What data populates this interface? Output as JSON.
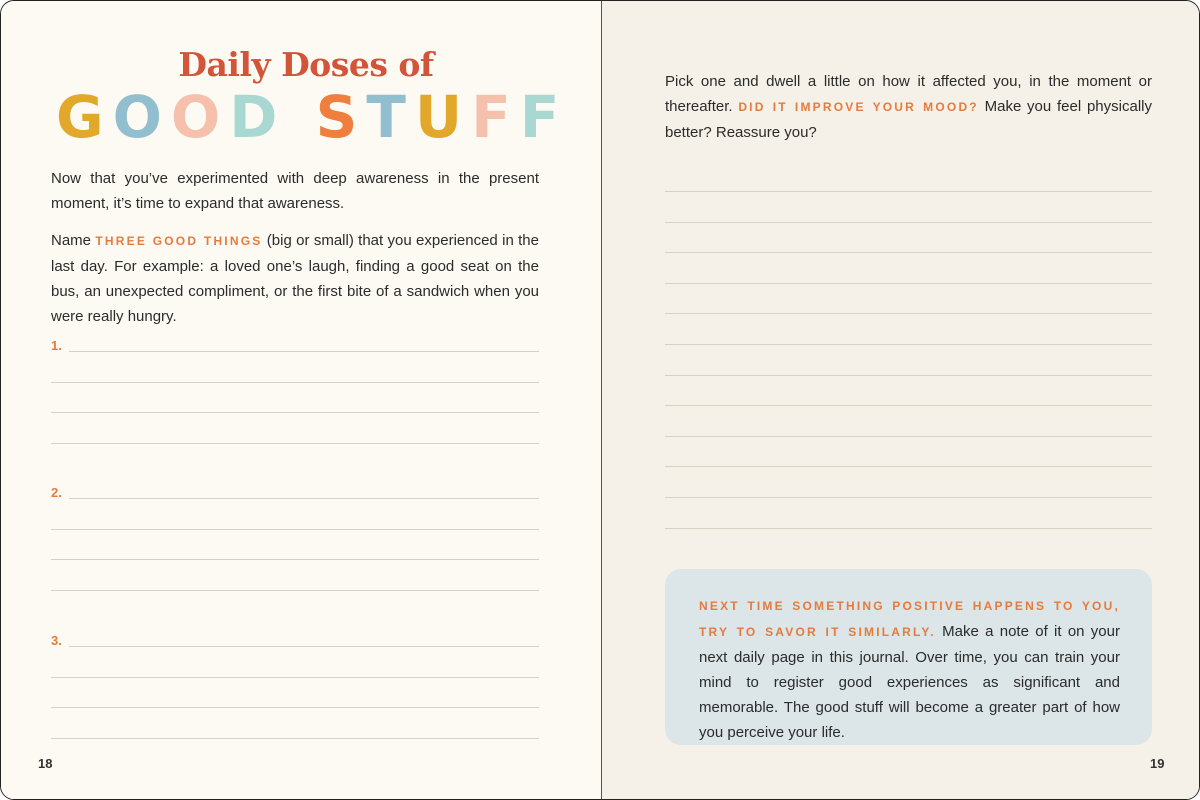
{
  "left_page": {
    "title_top": "Daily Doses of",
    "title_letters": [
      {
        "ch": "G",
        "color": "#e2a82b"
      },
      {
        "ch": "O",
        "color": "#92bfcf"
      },
      {
        "ch": "O",
        "color": "#f5c1ac"
      },
      {
        "ch": "D",
        "color": "#a9d7d2"
      },
      {
        "ch": " ",
        "color": "#ffffff"
      },
      {
        "ch": "S",
        "color": "#ee7f3d"
      },
      {
        "ch": "T",
        "color": "#92bfcf"
      },
      {
        "ch": "U",
        "color": "#e2a82b"
      },
      {
        "ch": "F",
        "color": "#f5c1ac"
      },
      {
        "ch": "F",
        "color": "#a9d7d2"
      }
    ],
    "intro": "Now that you’ve experimented with deep awareness in the present moment, it’s time to expand that awareness.",
    "prompt_before": "Name ",
    "prompt_highlight": "THREE GOOD THINGS",
    "prompt_after": " (big or small) that you experienced in the last day. For example: a loved one’s laugh, finding a good seat on the bus, an unexpected compliment, or the first bite of a sandwich when you were really hungry.",
    "items": [
      "1.",
      "2.",
      "3."
    ],
    "page_number": "18"
  },
  "right_page": {
    "prompt_before": "Pick one and dwell a little on how it affected you, in the moment or thereafter. ",
    "prompt_highlight": "DID IT IMPROVE YOUR MOOD?",
    "prompt_after": " Make you feel physically better? Reassure you?",
    "tip_highlight": "NEXT TIME SOMETHING POSITIVE HAPPENS TO YOU, TRY TO SAVOR IT SIMILARLY.",
    "tip_text": " Make a note of it on your next daily page in this journal. Over time, you can train your mind to register good experiences as significant and memorable. The good stuff will become a greater part of how you perceive your life.",
    "page_number": "19"
  },
  "colors": {
    "accent": "#e57b3c",
    "title": "#d2553a",
    "tip_bg": "#dce5e7"
  }
}
